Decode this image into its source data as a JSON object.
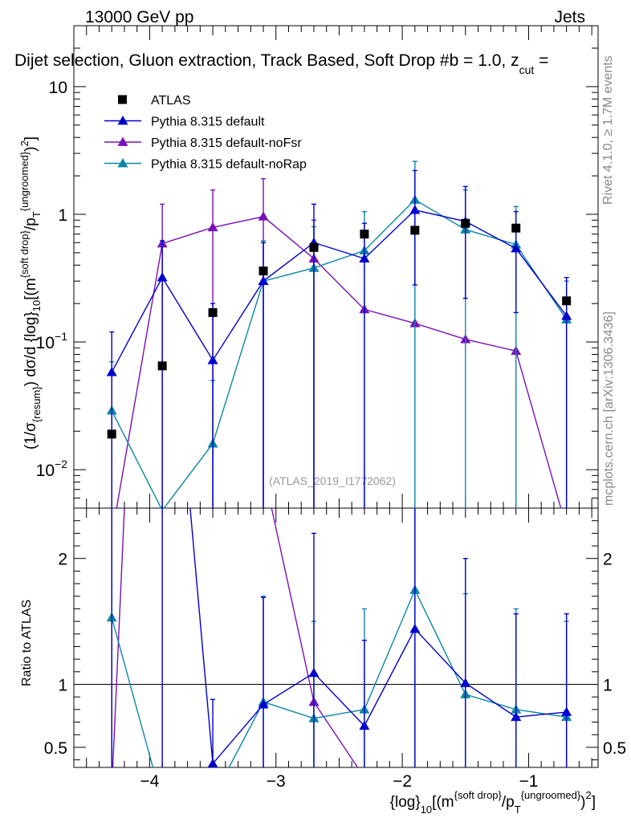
{
  "header": {
    "energy": "13000 GeV pp",
    "category": "Jets",
    "selection": "Dijet selection, Gluon extraction, Track Based, Soft Drop #b = 1.0, z",
    "selection_sub": "cut",
    "selection_tail": " ="
  },
  "side": {
    "rivet": "Rivet 4.1.0, ≥ 1.7M events",
    "mcplots": "mcplots.cern.ch [arXiv:1306.3436]"
  },
  "watermark": "(ATLAS_2019_I1772062)",
  "axes": {
    "ylabel_main": "(1/σ_{resum}) dσ/d {log}_{10}[(m^{soft drop}/p_T^{ungroomed})^2]",
    "ylabel_ratio": "Ratio to ATLAS",
    "xlabel": "{log}_{10}[(m^{soft drop}/p_T^{ungroomed})^2]"
  },
  "colors": {
    "data": "#000000",
    "default": "#0000cc",
    "noFsr": "#7a10b8",
    "noRap": "#0b86a8"
  },
  "chart_data": {
    "type": "line",
    "title": "Dijet selection, Gluon extraction, Track Based, Soft Drop #b = 1.0, z_cut =",
    "x": [
      -4.3,
      -3.9,
      -3.5,
      -3.1,
      -2.7,
      -2.3,
      -1.9,
      -1.5,
      -1.1,
      -0.7
    ],
    "xlim": [
      -4.6,
      -0.45
    ],
    "xticks": [
      -4,
      -3,
      -2,
      -1
    ],
    "main": {
      "scale": "log",
      "ylim": [
        0.005,
        30
      ],
      "yticks": [
        {
          "value": 0.01,
          "base": "10",
          "exp": "−2"
        },
        {
          "value": 0.1,
          "base": "10",
          "exp": "−1"
        },
        {
          "value": 1,
          "base": "1",
          "exp": ""
        },
        {
          "value": 10,
          "base": "10",
          "exp": ""
        }
      ]
    },
    "ratio": {
      "ylim": [
        0.34,
        2.4
      ],
      "yticks": [
        {
          "value": 0.5,
          "label": "0.5"
        },
        {
          "value": 1,
          "label": "1"
        },
        {
          "value": 2,
          "label": "2"
        }
      ]
    },
    "series": [
      {
        "name": "ATLAS",
        "key": "data",
        "marker": "square",
        "values": [
          0.019,
          0.065,
          0.17,
          0.36,
          0.55,
          0.7,
          0.75,
          0.85,
          0.78,
          0.21
        ],
        "ratio": [
          1,
          1,
          1,
          1,
          1,
          1,
          1,
          1,
          1,
          1
        ]
      },
      {
        "name": "Pythia 8.315 default",
        "key": "default",
        "marker": "triangle",
        "values": [
          0.058,
          0.32,
          0.072,
          0.3,
          0.6,
          0.45,
          1.08,
          0.88,
          0.54,
          0.16
        ],
        "err_up": [
          0.12,
          0.62,
          0.2,
          0.6,
          1.2,
          0.85,
          2.2,
          1.65,
          1.05,
          0.32
        ],
        "err_down": [
          0.0,
          0.0,
          0.0,
          0.0,
          0.0,
          0.0,
          0.28,
          0.22,
          0.17,
          0.004
        ],
        "ratio": [
          3.0,
          4.9,
          0.37,
          0.84,
          1.09,
          0.67,
          1.44,
          1.01,
          0.74,
          0.78
        ],
        "ratio_err_up": [
          2.4,
          2.4,
          0.88,
          1.69,
          2.2,
          1.35,
          2.4,
          2.0,
          1.56,
          1.56
        ],
        "ratio_err_down": [
          0.34,
          0.34,
          0.34,
          0.34,
          0.34,
          0.34,
          0.34,
          0.34,
          0.34,
          0.34
        ]
      },
      {
        "name": "Pythia 8.315 default-noFsr",
        "key": "noFsr",
        "marker": "triangle",
        "values": [
          0.003,
          0.59,
          0.79,
          0.96,
          0.45,
          0.18,
          0.14,
          0.105,
          0.085,
          0.0035
        ],
        "err_up": [
          0.003,
          1.2,
          1.55,
          1.9,
          0.9,
          0.0,
          0.0,
          0.0,
          0.0,
          0.0
        ],
        "err_down": [
          0.0,
          0.0,
          0.0,
          0.0,
          0.0,
          0.0,
          0.0,
          0.0,
          0.0,
          0.0
        ],
        "ratio": [
          0.16,
          9.1,
          4.6,
          2.7,
          0.86,
          0.26,
          0.19,
          0.12,
          0.11,
          0.017
        ],
        "ratio_err_up": [
          0.16,
          9.1,
          4.6,
          2.7,
          0.86,
          0.26,
          0.19,
          0.12,
          0.11,
          0.017
        ],
        "ratio_err_down": [
          0.16,
          9.1,
          4.6,
          2.7,
          0.86,
          0.26,
          0.19,
          0.12,
          0.11,
          0.017
        ]
      },
      {
        "name": "Pythia 8.315 default-noRap",
        "key": "noRap",
        "marker": "triangle",
        "values": [
          0.029,
          0.0048,
          0.016,
          0.3,
          0.38,
          0.52,
          1.3,
          0.76,
          0.58,
          0.15
        ],
        "err_up": [
          0.07,
          0.0048,
          0.05,
          0.62,
          0.8,
          1.05,
          2.6,
          1.55,
          1.15,
          0.3
        ],
        "err_down": [
          0.0,
          0.0,
          0.0,
          0.0,
          0.0,
          0.0,
          0.0,
          0.0,
          0.0,
          0.0
        ],
        "ratio": [
          1.53,
          0.07,
          0.094,
          0.86,
          0.73,
          0.8,
          1.75,
          0.92,
          0.8,
          0.74
        ],
        "ratio_err_up": [
          2.4,
          0.07,
          0.094,
          1.7,
          1.5,
          1.6,
          2.4,
          1.72,
          1.6,
          1.5
        ],
        "ratio_err_down": [
          0.34,
          0.07,
          0.094,
          0.34,
          0.34,
          0.34,
          0.34,
          0.34,
          0.34,
          0.34
        ]
      }
    ]
  }
}
